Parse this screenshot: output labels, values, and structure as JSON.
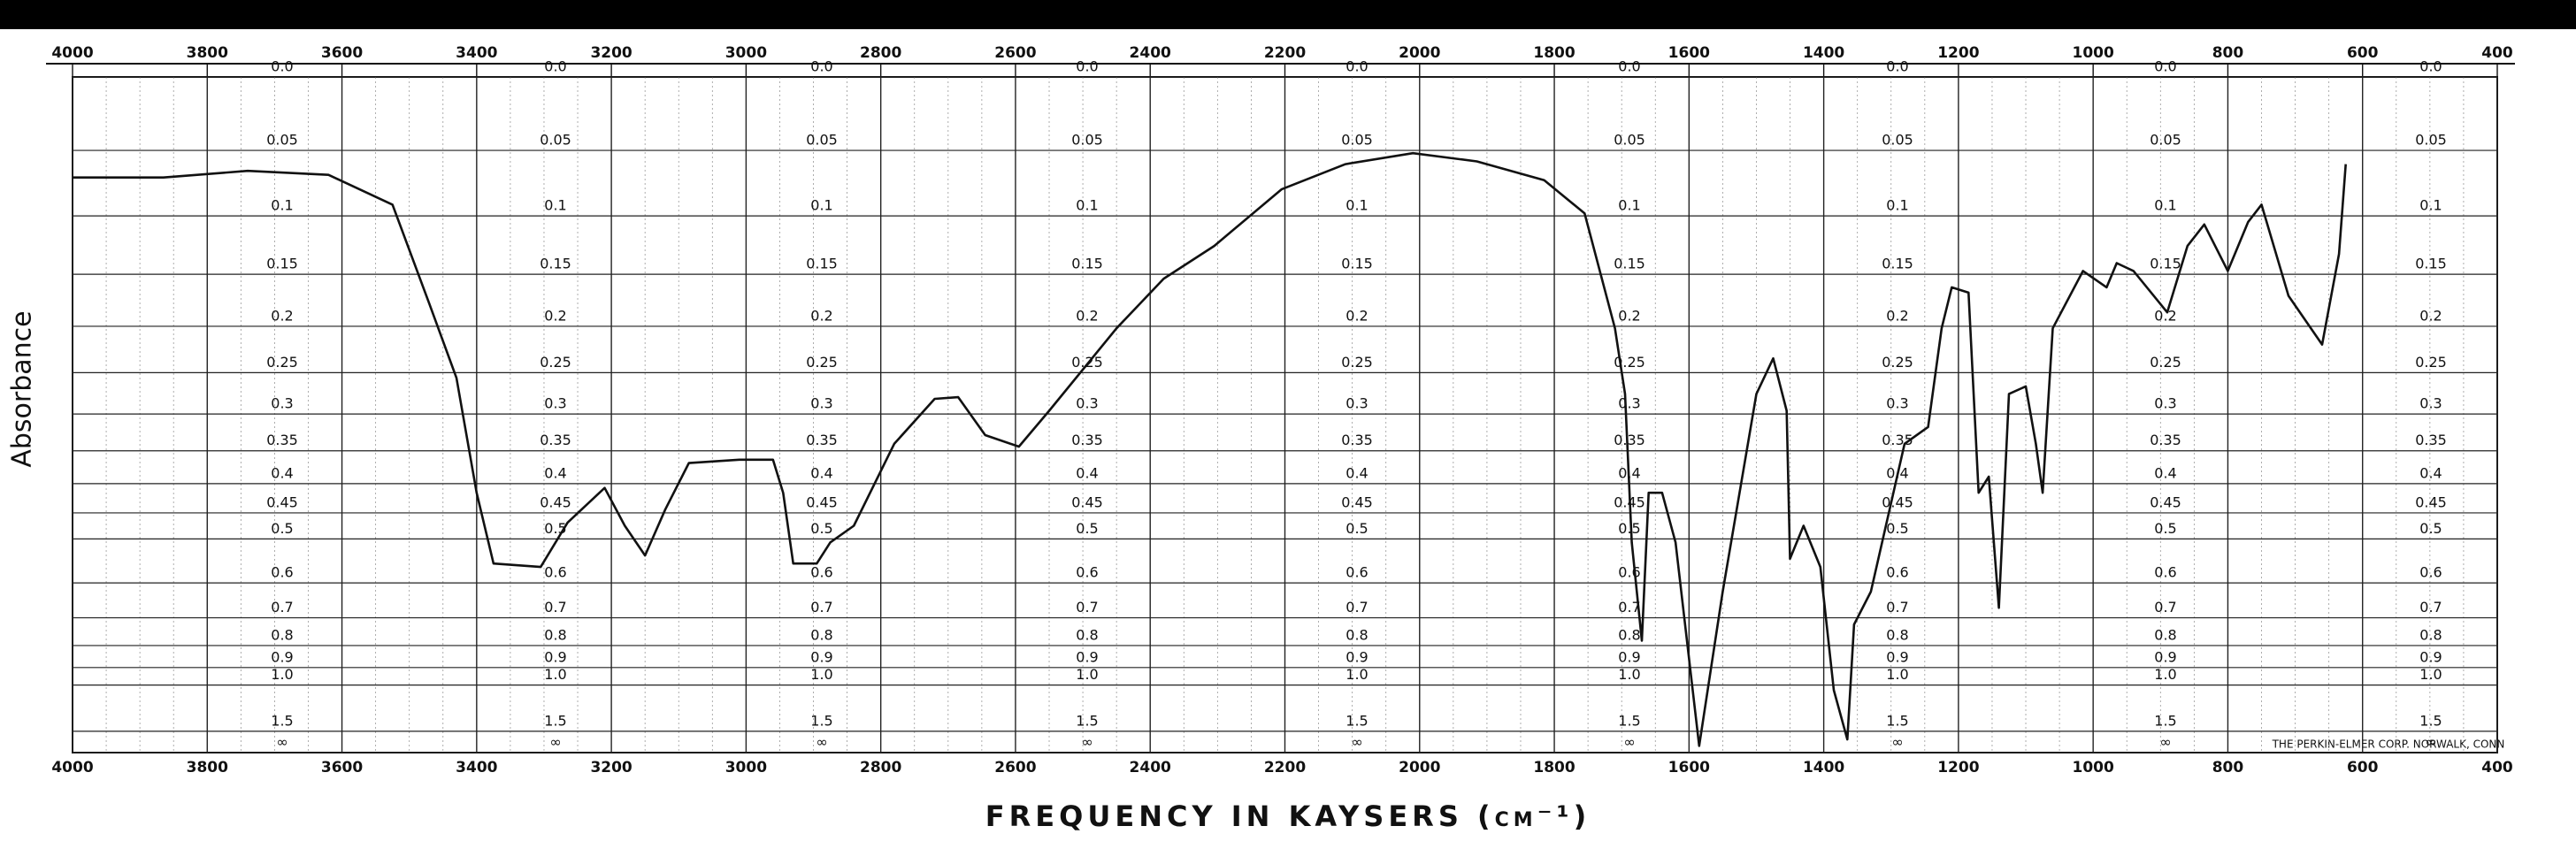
{
  "chart_data": {
    "type": "line",
    "xlabel": "FREQUENCY IN KAYSERS (cm⁻¹)",
    "ylabel": "Absorbance",
    "annotation": "THE PERKIN-ELMER CORP. NORWALK, CONN",
    "yscale": "transmittance",
    "grid": true,
    "color": "#111111",
    "xlim": [
      4000,
      400
    ],
    "xticks": [
      4000,
      3800,
      3600,
      3400,
      3200,
      3000,
      2800,
      2600,
      2400,
      2200,
      2000,
      1800,
      1600,
      1400,
      1200,
      1000,
      800,
      600,
      400
    ],
    "yticks": [
      {
        "value": 0,
        "label": "0.0"
      },
      0.05,
      0.1,
      0.15,
      0.2,
      0.25,
      0.3,
      0.35,
      0.4,
      0.45,
      0.5,
      0.6,
      0.7,
      0.8,
      0.9,
      {
        "value": 1,
        "label": "1.0"
      },
      1.5,
      {
        "value": null,
        "label": "∞"
      }
    ],
    "x": [
      4000,
      3865,
      3740,
      3620,
      3525,
      3470,
      3430,
      3400,
      3375,
      3305,
      3265,
      3210,
      3180,
      3150,
      3120,
      3085,
      3010,
      2960,
      2945,
      2930,
      2895,
      2875,
      2840,
      2780,
      2720,
      2685,
      2645,
      2595,
      2550,
      2450,
      2380,
      2305,
      2205,
      2110,
      2010,
      1915,
      1815,
      1755,
      1710,
      1695,
      1685,
      1670,
      1660,
      1640,
      1620,
      1585,
      1550,
      1500,
      1475,
      1455,
      1450,
      1430,
      1405,
      1385,
      1365,
      1355,
      1330,
      1280,
      1245,
      1225,
      1210,
      1185,
      1170,
      1155,
      1140,
      1125,
      1100,
      1085,
      1075,
      1060,
      1015,
      980,
      965,
      940,
      890,
      860,
      835,
      800,
      770,
      750,
      710,
      660,
      635,
      625
    ],
    "values": [
      0.07,
      0.07,
      0.065,
      0.068,
      0.091,
      0.178,
      0.256,
      0.415,
      0.553,
      0.561,
      0.468,
      0.407,
      0.474,
      0.535,
      0.444,
      0.368,
      0.363,
      0.363,
      0.415,
      0.553,
      0.553,
      0.507,
      0.474,
      0.34,
      0.281,
      0.279,
      0.328,
      0.344,
      0.296,
      0.202,
      0.154,
      0.125,
      0.079,
      0.06,
      0.052,
      0.058,
      0.072,
      0.098,
      0.202,
      0.275,
      0.507,
      0.781,
      0.415,
      0.415,
      0.507,
      2.0,
      0.623,
      0.275,
      0.234,
      0.296,
      0.542,
      0.474,
      0.561,
      1.034,
      1.71,
      0.722,
      0.623,
      0.34,
      0.317,
      0.202,
      0.162,
      0.167,
      0.415,
      0.389,
      0.669,
      0.275,
      0.266,
      0.34,
      0.415,
      0.202,
      0.147,
      0.162,
      0.14,
      0.147,
      0.186,
      0.125,
      0.107,
      0.147,
      0.105,
      0.091,
      0.17,
      0.219,
      0.132,
      0.06
    ]
  }
}
